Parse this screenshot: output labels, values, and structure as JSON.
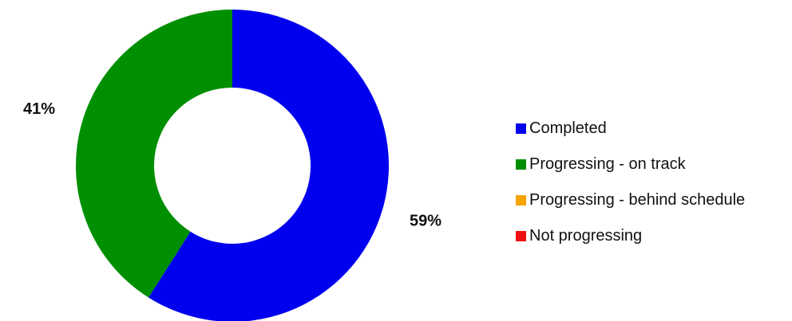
{
  "chart_data": {
    "type": "pie",
    "donut": true,
    "title": "",
    "categories": [
      "Completed",
      "Progressing - on track",
      "Progressing - behind schedule",
      "Not progressing"
    ],
    "values": [
      59,
      41,
      0,
      0
    ],
    "value_labels": [
      "59%",
      "41%",
      "",
      ""
    ],
    "colors": [
      "#0000ee",
      "#008f00",
      "#f5a300",
      "#ee1111"
    ],
    "legend_position": "right"
  }
}
